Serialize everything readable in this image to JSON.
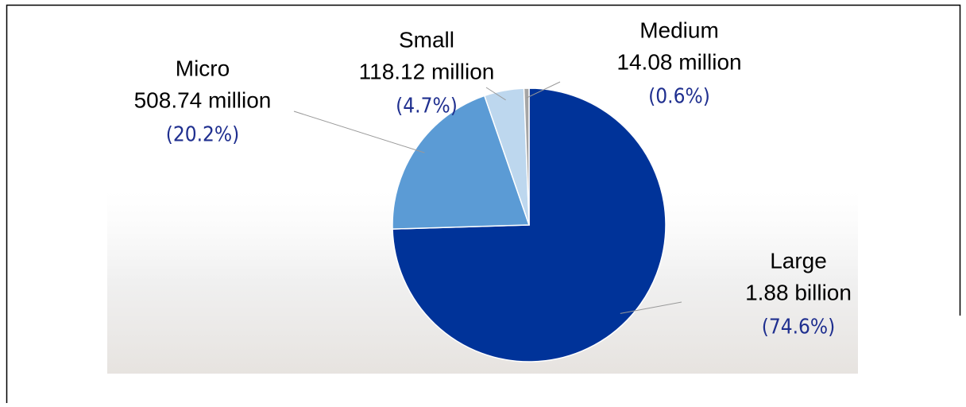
{
  "chart_data": {
    "type": "pie",
    "categories": [
      "Large",
      "Micro",
      "Small",
      "Medium"
    ],
    "amount_labels": [
      "1.88 billion",
      "508.74 million",
      "118.12 million",
      "14.08 million"
    ],
    "values": [
      74.6,
      20.2,
      4.7,
      0.6
    ],
    "value_labels": [
      "(74.6%)",
      "(20.2%)",
      "(4.7%)",
      "(0.6%)"
    ],
    "colors": [
      "#003399",
      "#5b9bd5",
      "#bdd7ee",
      "#a5a5a5"
    ]
  }
}
